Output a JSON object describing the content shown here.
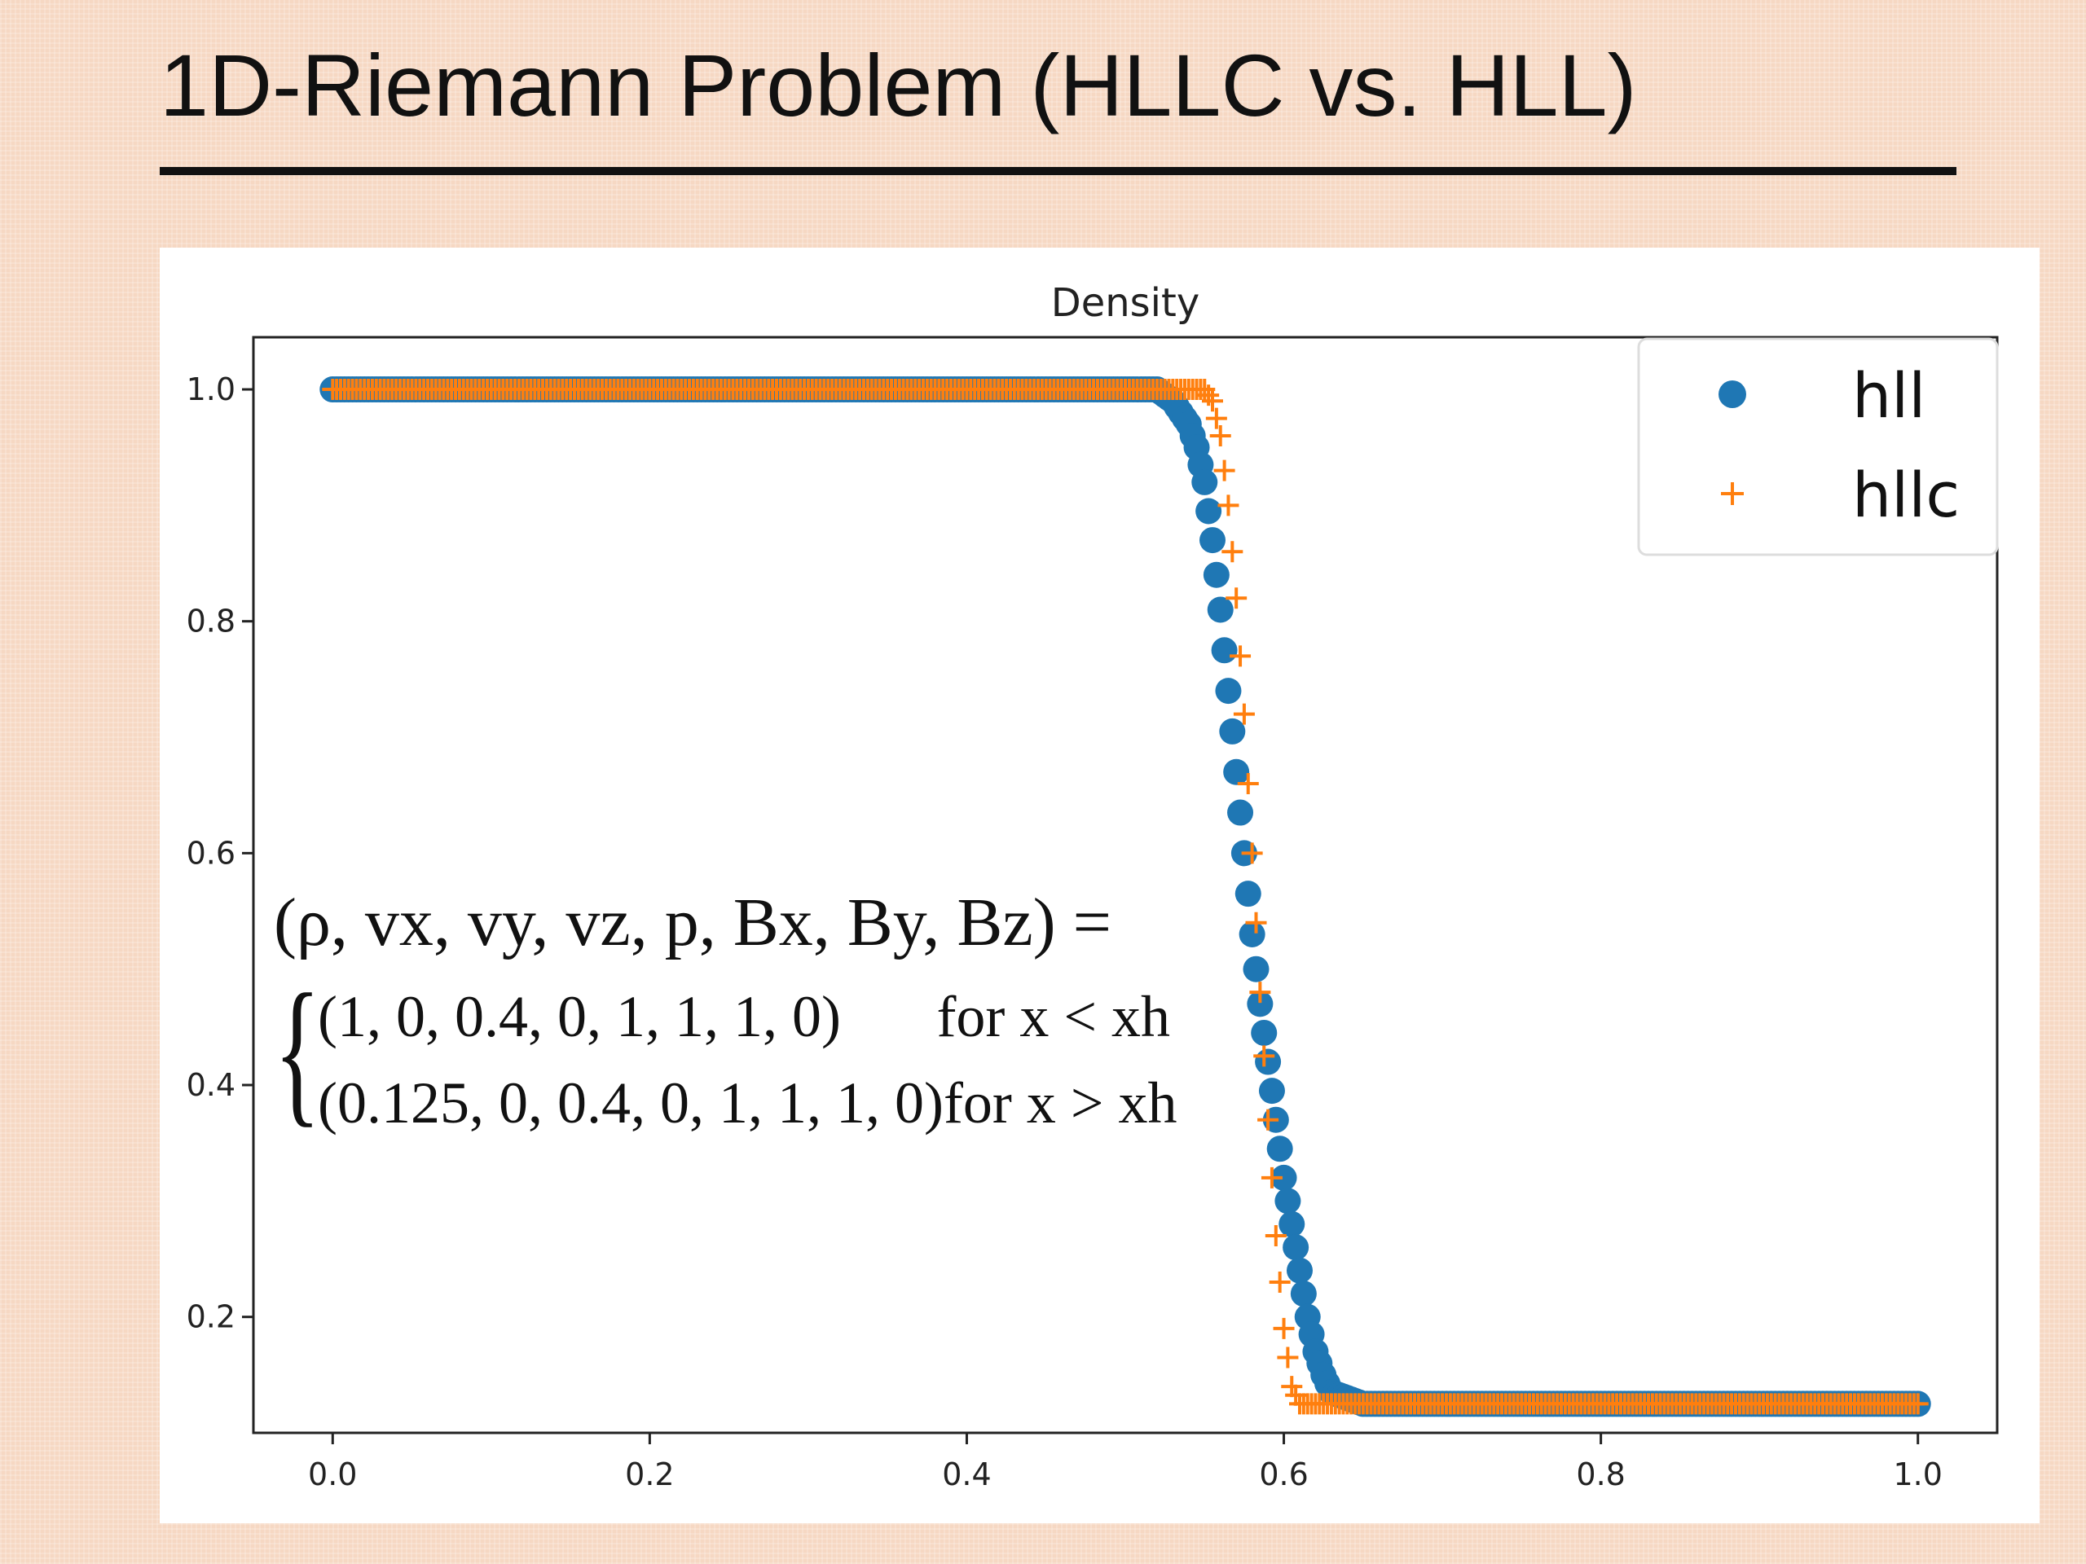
{
  "slide": {
    "title": "1D-Riemann Problem (HLLC vs. HLL)"
  },
  "formula": {
    "lhs": "(ρ, vx, vy, vz, p, Bx, By, Bz) =",
    "cases": [
      {
        "value": "(1, 0, 0.4, 0, 1, 1, 1, 0)",
        "condition": "for x < xh"
      },
      {
        "value": "(0.125, 0, 0.4, 0, 1, 1, 1, 0)",
        "condition": "for x > xh"
      }
    ]
  },
  "chart_data": {
    "type": "scatter",
    "title": "Density",
    "xlabel": "",
    "ylabel": "",
    "xlim": [
      -0.05,
      1.05
    ],
    "ylim": [
      0.1,
      1.045
    ],
    "xticks": [
      "0.0",
      "0.2",
      "0.4",
      "0.6",
      "0.8",
      "1.0"
    ],
    "yticks": [
      "0.2",
      "0.4",
      "0.6",
      "0.8",
      "1.0"
    ],
    "grid": false,
    "legend": "top-right",
    "series": [
      {
        "name": "hll",
        "marker": "circle",
        "color": "#1f77b4",
        "x": [
          0.0,
          0.05,
          0.1,
          0.15,
          0.2,
          0.25,
          0.3,
          0.35,
          0.4,
          0.45,
          0.5,
          0.52,
          0.53,
          0.54,
          0.545,
          0.55,
          0.555,
          0.56,
          0.565,
          0.57,
          0.575,
          0.58,
          0.585,
          0.59,
          0.595,
          0.6,
          0.605,
          0.61,
          0.615,
          0.62,
          0.625,
          0.63,
          0.64,
          0.65,
          0.7,
          0.75,
          0.8,
          0.85,
          0.9,
          0.95,
          1.0
        ],
        "values": [
          1.0,
          1.0,
          1.0,
          1.0,
          1.0,
          1.0,
          1.0,
          1.0,
          1.0,
          1.0,
          1.0,
          1.0,
          0.99,
          0.97,
          0.95,
          0.92,
          0.87,
          0.81,
          0.74,
          0.67,
          0.6,
          0.53,
          0.47,
          0.42,
          0.37,
          0.32,
          0.28,
          0.24,
          0.2,
          0.17,
          0.15,
          0.135,
          0.13,
          0.125,
          0.125,
          0.125,
          0.125,
          0.125,
          0.125,
          0.125,
          0.125
        ]
      },
      {
        "name": "hllc",
        "marker": "plus",
        "color": "#ff7f0e",
        "x": [
          0.0,
          0.05,
          0.1,
          0.15,
          0.2,
          0.25,
          0.3,
          0.35,
          0.4,
          0.45,
          0.5,
          0.54,
          0.55,
          0.555,
          0.56,
          0.565,
          0.57,
          0.575,
          0.58,
          0.585,
          0.59,
          0.595,
          0.6,
          0.605,
          0.61,
          0.62,
          0.65,
          0.7,
          0.75,
          0.8,
          0.85,
          0.9,
          0.95,
          1.0
        ],
        "values": [
          1.0,
          1.0,
          1.0,
          1.0,
          1.0,
          1.0,
          1.0,
          1.0,
          1.0,
          1.0,
          1.0,
          1.0,
          1.0,
          0.99,
          0.96,
          0.9,
          0.82,
          0.72,
          0.6,
          0.48,
          0.37,
          0.27,
          0.19,
          0.14,
          0.125,
          0.125,
          0.125,
          0.125,
          0.125,
          0.125,
          0.125,
          0.125,
          0.125,
          0.125
        ]
      }
    ]
  }
}
